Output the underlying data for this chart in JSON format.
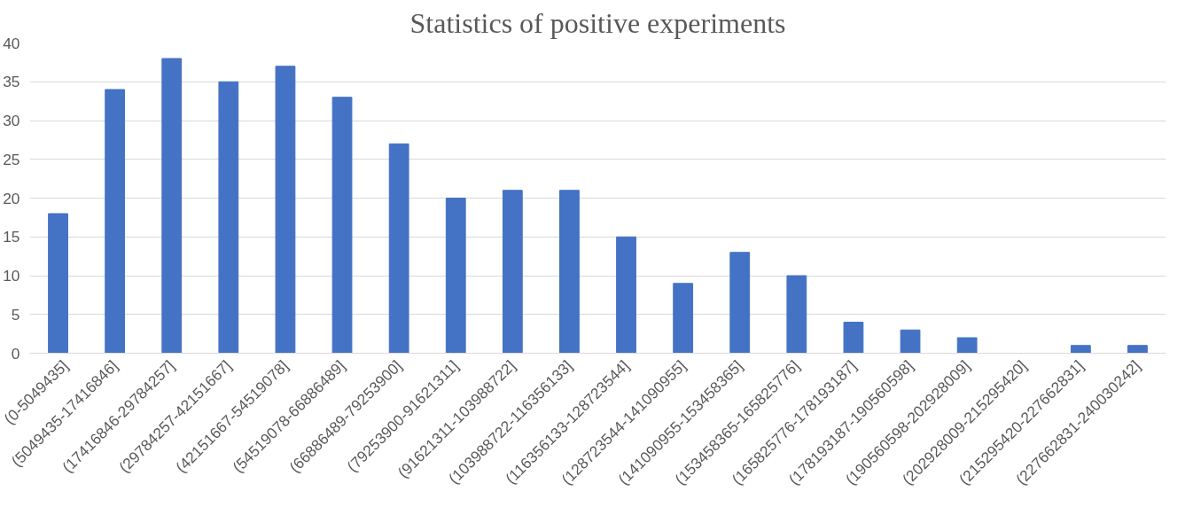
{
  "chart_data": {
    "type": "bar",
    "title": "Statistics of positive experiments",
    "categories": [
      "(0-5049435]",
      "(5049435-17416846]",
      "(17416846-29784257]",
      "(29784257-42151667]",
      "(42151667-54519078]",
      "(54519078-66886489]",
      "(66886489-79253900]",
      "(79253900-91621311]",
      "(91621311-103988722]",
      "(103988722-116356133]",
      "(116356133-128723544]",
      "(128723544-141090955]",
      "(141090955-153458365]",
      "(153458365-165825776]",
      "(165825776-178193187]",
      "(178193187-190560598]",
      "(190560598-202928009]",
      "(202928009-215295420]",
      "(215295420-227662831]",
      "(227662831-240030242]"
    ],
    "values": [
      18,
      34,
      38,
      35,
      37,
      33,
      27,
      20,
      21,
      21,
      15,
      9,
      13,
      10,
      4,
      3,
      2,
      0,
      1,
      1
    ],
    "color": "#4472c4",
    "ylim": [
      0,
      40
    ],
    "yticks": [
      0,
      5,
      10,
      15,
      20,
      25,
      30,
      35,
      40
    ],
    "grid": "y"
  }
}
